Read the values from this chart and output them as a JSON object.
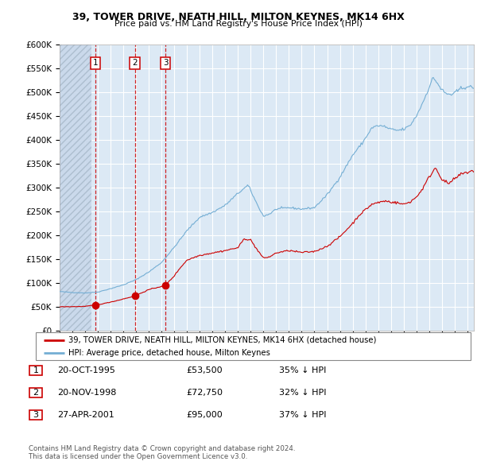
{
  "title1": "39, TOWER DRIVE, NEATH HILL, MILTON KEYNES, MK14 6HX",
  "title2": "Price paid vs. HM Land Registry's House Price Index (HPI)",
  "legend_red": "39, TOWER DRIVE, NEATH HILL, MILTON KEYNES, MK14 6HX (detached house)",
  "legend_blue": "HPI: Average price, detached house, Milton Keynes",
  "transactions": [
    {
      "num": 1,
      "date": "20-OCT-1995",
      "price": 53500,
      "pct": "35%",
      "dir": "↓"
    },
    {
      "num": 2,
      "date": "20-NOV-1998",
      "price": 72750,
      "pct": "32%",
      "dir": "↓"
    },
    {
      "num": 3,
      "date": "27-APR-2001",
      "price": 95000,
      "pct": "37%",
      "dir": "↓"
    }
  ],
  "transaction_years": [
    1995.8,
    1998.9,
    2001.3
  ],
  "transaction_prices": [
    53500,
    72750,
    95000
  ],
  "footer1": "Contains HM Land Registry data © Crown copyright and database right 2024.",
  "footer2": "This data is licensed under the Open Government Licence v3.0.",
  "bg_color": "#dce9f5",
  "hatch_color": "#c8d8ea",
  "grid_color": "#ffffff",
  "red_color": "#cc0000",
  "blue_color": "#74aed4",
  "ylim": [
    0,
    600000
  ],
  "yticks": [
    0,
    50000,
    100000,
    150000,
    200000,
    250000,
    300000,
    350000,
    400000,
    450000,
    500000,
    550000,
    600000
  ],
  "xlim_start": 1993.0,
  "xlim_end": 2025.5,
  "hpi_anchors": [
    [
      1993.0,
      82000
    ],
    [
      1994.0,
      80000
    ],
    [
      1995.0,
      79000
    ],
    [
      1996.0,
      81000
    ],
    [
      1997.0,
      88000
    ],
    [
      1998.0,
      96000
    ],
    [
      1999.0,
      107000
    ],
    [
      2000.0,
      123000
    ],
    [
      2001.0,
      143000
    ],
    [
      2002.0,
      175000
    ],
    [
      2003.0,
      210000
    ],
    [
      2004.0,
      238000
    ],
    [
      2005.0,
      248000
    ],
    [
      2006.0,
      263000
    ],
    [
      2007.0,
      288000
    ],
    [
      2007.8,
      305000
    ],
    [
      2008.5,
      265000
    ],
    [
      2009.0,
      240000
    ],
    [
      2009.5,
      245000
    ],
    [
      2010.0,
      255000
    ],
    [
      2011.0,
      258000
    ],
    [
      2012.0,
      255000
    ],
    [
      2013.0,
      258000
    ],
    [
      2014.0,
      285000
    ],
    [
      2015.0,
      322000
    ],
    [
      2016.0,
      368000
    ],
    [
      2016.8,
      395000
    ],
    [
      2017.5,
      425000
    ],
    [
      2018.0,
      430000
    ],
    [
      2018.5,
      428000
    ],
    [
      2019.0,
      422000
    ],
    [
      2019.5,
      420000
    ],
    [
      2020.0,
      422000
    ],
    [
      2020.5,
      430000
    ],
    [
      2021.0,
      450000
    ],
    [
      2021.5,
      478000
    ],
    [
      2022.0,
      510000
    ],
    [
      2022.3,
      530000
    ],
    [
      2022.6,
      522000
    ],
    [
      2022.9,
      508000
    ],
    [
      2023.3,
      497000
    ],
    [
      2023.8,
      495000
    ],
    [
      2024.0,
      498000
    ],
    [
      2024.5,
      508000
    ],
    [
      2025.0,
      512000
    ],
    [
      2025.3,
      510000
    ]
  ],
  "red_anchors": [
    [
      1993.0,
      50000
    ],
    [
      1994.5,
      50500
    ],
    [
      1995.0,
      51000
    ],
    [
      1995.8,
      53500
    ],
    [
      1996.5,
      57000
    ],
    [
      1997.5,
      63000
    ],
    [
      1998.9,
      72750
    ],
    [
      2000.0,
      86000
    ],
    [
      2001.3,
      95000
    ],
    [
      2002.0,
      115000
    ],
    [
      2002.5,
      133000
    ],
    [
      2003.0,
      148000
    ],
    [
      2004.0,
      158000
    ],
    [
      2005.0,
      163000
    ],
    [
      2006.0,
      168000
    ],
    [
      2007.0,
      174000
    ],
    [
      2007.5,
      193000
    ],
    [
      2008.0,
      190000
    ],
    [
      2008.5,
      170000
    ],
    [
      2009.0,
      152000
    ],
    [
      2009.5,
      155000
    ],
    [
      2010.0,
      163000
    ],
    [
      2011.0,
      168000
    ],
    [
      2012.0,
      164000
    ],
    [
      2013.0,
      166000
    ],
    [
      2014.0,
      177000
    ],
    [
      2015.0,
      197000
    ],
    [
      2016.0,
      225000
    ],
    [
      2016.5,
      242000
    ],
    [
      2017.5,
      265000
    ],
    [
      2018.5,
      272000
    ],
    [
      2019.0,
      270000
    ],
    [
      2019.5,
      268000
    ],
    [
      2020.0,
      265000
    ],
    [
      2020.5,
      270000
    ],
    [
      2021.0,
      280000
    ],
    [
      2021.5,
      298000
    ],
    [
      2022.0,
      322000
    ],
    [
      2022.5,
      342000
    ],
    [
      2022.8,
      328000
    ],
    [
      2023.0,
      318000
    ],
    [
      2023.5,
      308000
    ],
    [
      2024.0,
      318000
    ],
    [
      2024.5,
      328000
    ],
    [
      2025.0,
      332000
    ],
    [
      2025.3,
      335000
    ]
  ]
}
